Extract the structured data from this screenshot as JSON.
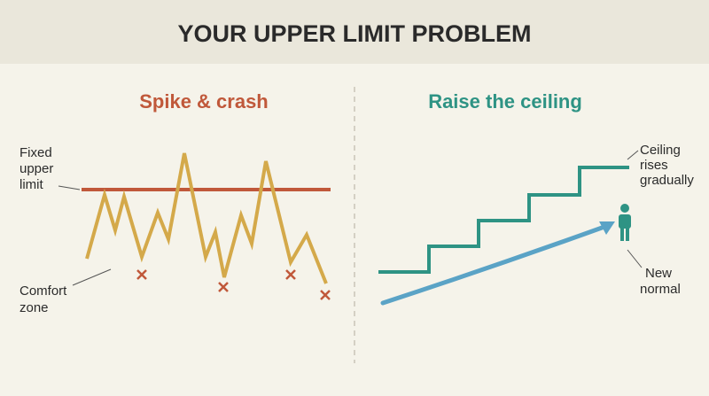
{
  "header": {
    "title": "YOUR UPPER LIMIT PROBLEM"
  },
  "left_panel": {
    "title": "Spike & crash",
    "limit_label": [
      "Fixed",
      "upper",
      "limit"
    ],
    "comfort_label": [
      "Comfort",
      "zone"
    ]
  },
  "right_panel": {
    "title": "Raise the ceiling",
    "ceiling_label": [
      "Ceiling",
      "rises",
      "gradually"
    ],
    "normal_label": [
      "New",
      "normal"
    ]
  }
}
